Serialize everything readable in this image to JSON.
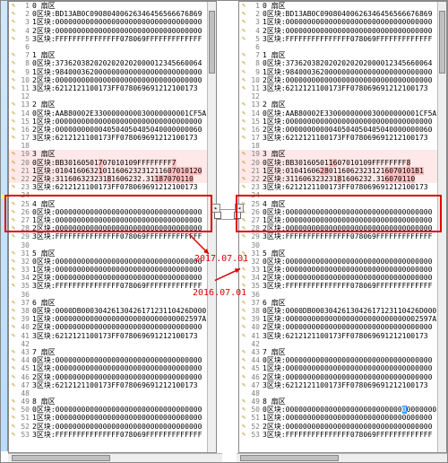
{
  "left_date": "2017.07.01",
  "right_date": "2016.07.01",
  "highlight_color": "#e00000",
  "diff_bg": "#ffe8e8",
  "change_bg": "#ffc0c0",
  "select_bg": "#3399ff",
  "icon_color": "#b58900",
  "panes": {
    "left": {
      "rows": [
        {
          "ln": 1,
          "t": "0 扇区"
        },
        {
          "ln": 2,
          "t": "0区块:BD13AB0C09080400626346456566676869"
        },
        {
          "ln": 3,
          "t": "1区块:0000000000000000000000000000000000"
        },
        {
          "ln": 4,
          "t": "2区块:0000000000000000000000000000000000"
        },
        {
          "ln": 5,
          "t": "3区块:FFFFFFFFFFFFFFF078069FFFFFFFFFFFFF"
        },
        {
          "ln": 6,
          "t": ""
        },
        {
          "ln": 7,
          "t": "1 扇区"
        },
        {
          "ln": 8,
          "t": "0区块:3736203820202020202000012345660064"
        },
        {
          "ln": 9,
          "t": "1区块:9840003620000000000000000000000000"
        },
        {
          "ln": 10,
          "t": "2区块:0000000000000000000000000000000000"
        },
        {
          "ln": 11,
          "t": "3区块:6212121100173FF078069691212100173"
        },
        {
          "ln": 12,
          "t": ""
        },
        {
          "ln": 13,
          "t": "2 扇区"
        },
        {
          "ln": 14,
          "t": "0区块:AAB80002E3300000000030000000001CF5AF"
        },
        {
          "ln": 15,
          "t": "1区块:0000000000000000000000000000000000"
        },
        {
          "ln": 16,
          "t": "2区块:0000000000040504050405040000000060"
        },
        {
          "ln": 17,
          "t": "3区块:6212121100173FF078069691212100173"
        },
        {
          "ln": 18,
          "t": ""
        },
        {
          "ln": 19,
          "t": "3 扇区",
          "diff": true
        },
        {
          "ln": 20,
          "t": "0区块:BB30160501",
          "diff": true,
          "suffix": "7",
          "rest": "07010109FFFFFFFF",
          "chg": true,
          "suffix2": "7"
        },
        {
          "ln": 21,
          "t": "1区块:0104160632",
          "diff": true,
          "suffix": "1",
          "rest": "011606232312116",
          "chg": true,
          "suffix2": "07010120"
        },
        {
          "ln": 22,
          "t": "2区块:311606323231",
          "diff": true,
          "suffix": "8",
          "rest": "1606232.31",
          "chg": true,
          "suffix2": "187070110"
        },
        {
          "ln": 23,
          "t": "3区块:6212121100173FF078069691212100173"
        },
        {
          "ln": 24,
          "t": ""
        },
        {
          "ln": 25,
          "t": "4 扇区"
        },
        {
          "ln": 26,
          "t": "0区块:0000000000000000000000000000000000"
        },
        {
          "ln": 27,
          "t": "1区块:0000000000000000000000000000000000"
        },
        {
          "ln": 28,
          "t": "2区块:0000000000000000000000000000000000"
        },
        {
          "ln": 29,
          "t": "3区块:FFFFFFFFFFFFFFF078069FFFFFFFFFFFFF"
        },
        {
          "ln": 30,
          "t": ""
        },
        {
          "ln": 31,
          "t": "5 扇区"
        },
        {
          "ln": 32,
          "t": "0区块:0000000000000000000000000000000000"
        },
        {
          "ln": 33,
          "t": "1区块:0000000000000000000000000000000000"
        },
        {
          "ln": 34,
          "t": "2区块:0000000000000000000000000000000000"
        },
        {
          "ln": 35,
          "t": "3区块:FFFFFFFFFFFFFFF078069FFFFFFFFFFFFF"
        },
        {
          "ln": 36,
          "t": ""
        },
        {
          "ln": 37,
          "t": "6 扇区"
        },
        {
          "ln": 38,
          "t": "0区块:0000DB0003042613042617123110426D000147"
        },
        {
          "ln": 39,
          "t": "1区块:0000000000000000000000000000002597A"
        },
        {
          "ln": 40,
          "t": "2区块:0000000000000000000000000000000000"
        },
        {
          "ln": 41,
          "t": "3区块:6212121100173FF078069691212100173"
        },
        {
          "ln": 42,
          "t": ""
        },
        {
          "ln": 43,
          "t": "7 扇区"
        },
        {
          "ln": 44,
          "t": "0区块:0000000000000000000000000000000000"
        },
        {
          "ln": 45,
          "t": "1区块:0000000000000000000000000000000000"
        },
        {
          "ln": 46,
          "t": "2区块:0000000000000000000000000000000000"
        },
        {
          "ln": 47,
          "t": "3区块:6212121100173FF078069691212100173"
        },
        {
          "ln": 48,
          "t": ""
        },
        {
          "ln": 49,
          "t": "8 扇区"
        },
        {
          "ln": 50,
          "t": "0区块:0000000000000000000000000000000000"
        },
        {
          "ln": 51,
          "t": "1区块:0000000000000000000000000000000000"
        },
        {
          "ln": 52,
          "t": "2区块:0000000000000000000000000000000000"
        },
        {
          "ln": 53,
          "t": "3区块:FFFFFFFFFFFFFFF078069FFFFFFFFFFFFF"
        }
      ]
    },
    "right": {
      "rows": [
        {
          "ln": 1,
          "t": "0 扇区"
        },
        {
          "ln": 2,
          "t": "0区块:BD13AB0C09080400626346456566676869"
        },
        {
          "ln": 3,
          "t": "1区块:0000000000000000000000000000000000"
        },
        {
          "ln": 4,
          "t": "2区块:0000000000000000000000000000000000"
        },
        {
          "ln": 5,
          "t": "3区块:FFFFFFFFFFFFFFF078069FFFFFFFFFFFFF"
        },
        {
          "ln": 6,
          "t": ""
        },
        {
          "ln": 7,
          "t": "1 扇区"
        },
        {
          "ln": 8,
          "t": "0区块:3736203820202020202000012345660064"
        },
        {
          "ln": 9,
          "t": "1区块:9840003620000000000000000000000000"
        },
        {
          "ln": 10,
          "t": "2区块:0000000000000000000000000000000000"
        },
        {
          "ln": 11,
          "t": "3区块:6212121100173FF078069691212100173"
        },
        {
          "ln": 12,
          "t": ""
        },
        {
          "ln": 13,
          "t": "2 扇区"
        },
        {
          "ln": 14,
          "t": "0区块:AAB80002E3300000000030000000001CF5AF"
        },
        {
          "ln": 15,
          "t": "1区块:0000000000000000000000000000000000"
        },
        {
          "ln": 16,
          "t": "2区块:0000000000040504050405040000000060"
        },
        {
          "ln": 17,
          "t": "3区块:6212121100173FF078069691212100173"
        },
        {
          "ln": 18,
          "t": ""
        },
        {
          "ln": 19,
          "t": "3 扇区",
          "diff": true
        },
        {
          "ln": 20,
          "t": "0区块:BB30160501",
          "diff": true,
          "suffix": "16",
          "rest": "07010109FFFFFFFF",
          "chg": true,
          "suffix2": "8"
        },
        {
          "ln": 21,
          "t": "1区块:01041606",
          "diff": true,
          "suffix": "28",
          "rest": "0116062323121",
          "chg": true,
          "suffix2": "6070101B1"
        },
        {
          "ln": 22,
          "t": "2区块:311606323231",
          "diff": true,
          "suffix": "8",
          "rest": "1606232.31",
          "chg": true,
          "suffix2": "6070110"
        },
        {
          "ln": 23,
          "t": "3区块:6212121100173FF078069691212100173"
        },
        {
          "ln": 24,
          "t": ""
        },
        {
          "ln": 25,
          "t": "4 扇区"
        },
        {
          "ln": 26,
          "t": "0区块:0000000000000000000000000000000000"
        },
        {
          "ln": 27,
          "t": "1区块:0000000000000000000000000000000000"
        },
        {
          "ln": 28,
          "t": "2区块:0000000000000000000000000000000000"
        },
        {
          "ln": 29,
          "t": "3区块:FFFFFFFFFFFFFFF078069FFFFFFFFFFFFF"
        },
        {
          "ln": 30,
          "t": ""
        },
        {
          "ln": 31,
          "t": "5 扇区"
        },
        {
          "ln": 32,
          "t": "0区块:0000000000000000000000000000000000"
        },
        {
          "ln": 33,
          "t": "1区块:0000000000000000000000000000000000"
        },
        {
          "ln": 34,
          "t": "2区块:0000000000000000000000000000000000"
        },
        {
          "ln": 35,
          "t": "3区块:FFFFFFFFFFFFFFF078069FFFFFFFFFFFFF"
        },
        {
          "ln": 36,
          "t": ""
        },
        {
          "ln": 37,
          "t": "6 扇区"
        },
        {
          "ln": 38,
          "t": "0区块:0000DB0003042613042617123110426D000147"
        },
        {
          "ln": 39,
          "t": "1区块:0000000000000000000000000000002597A"
        },
        {
          "ln": 40,
          "t": "2区块:0000000000000000000000000000000000"
        },
        {
          "ln": 41,
          "t": "3区块:6212121100173FF078069691212100173"
        },
        {
          "ln": 42,
          "t": ""
        },
        {
          "ln": 43,
          "t": "7 扇区"
        },
        {
          "ln": 44,
          "t": "0区块:0000000000000000000000000000000000"
        },
        {
          "ln": 45,
          "t": "1区块:0000000000000000000000000000000000"
        },
        {
          "ln": 46,
          "t": "2区块:0000000000000000000000000000000000"
        },
        {
          "ln": 47,
          "t": "3区块:6212121100173FF078069691212100173"
        },
        {
          "ln": 48,
          "t": ""
        },
        {
          "ln": 49,
          "t": "8 扇区"
        },
        {
          "ln": 50,
          "t": "0区块:000000000000000000000000000",
          "sel": "0",
          "rest2": "0000000"
        },
        {
          "ln": 51,
          "t": "1区块:0000000000000000000000000000000000"
        },
        {
          "ln": 52,
          "t": "2区块:0000000000000000000000000000000000"
        },
        {
          "ln": 53,
          "t": "3区块:FFFFFFFFFFFFFFF078069FFFFFFFFFFFFF"
        }
      ]
    }
  }
}
